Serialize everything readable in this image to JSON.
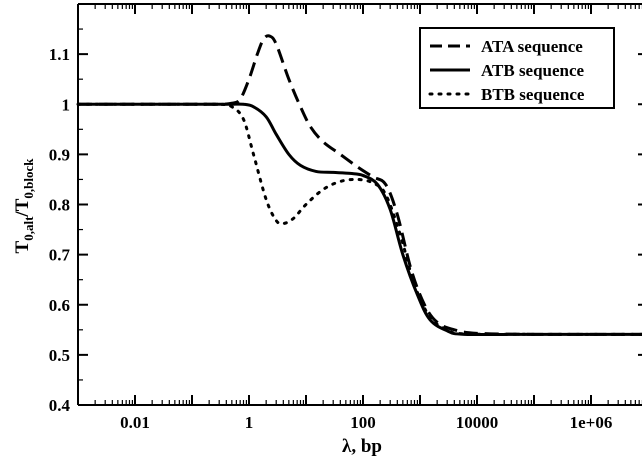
{
  "chart_data": {
    "type": "line",
    "xscale": "log",
    "xlim": [
      0.001,
      10000000
    ],
    "ylim": [
      0.4,
      1.2
    ],
    "x_ticks": [
      {
        "value": 0.01,
        "label": "0.01"
      },
      {
        "value": 1,
        "label": "1"
      },
      {
        "value": 100,
        "label": "100"
      },
      {
        "value": 10000,
        "label": "10000"
      },
      {
        "value": 1000000,
        "label": "1e+06"
      }
    ],
    "y_ticks": [
      {
        "value": 0.4,
        "label": "0.4"
      },
      {
        "value": 0.5,
        "label": "0.5"
      },
      {
        "value": 0.6,
        "label": "0.6"
      },
      {
        "value": 0.7,
        "label": "0.7"
      },
      {
        "value": 0.8,
        "label": "0.8"
      },
      {
        "value": 0.9,
        "label": "0.9"
      },
      {
        "value": 1.0,
        "label": "1"
      },
      {
        "value": 1.1,
        "label": "1.1"
      }
    ],
    "xlabel": "λ, bp",
    "ylabel": {
      "main": "T",
      "sub1": "0,alt",
      "mid": "/T",
      "sub2": "0,block"
    },
    "legend_position": "top-right",
    "series": [
      {
        "name": "ATA sequence",
        "style": "dashed",
        "color": "#000000",
        "points": [
          [
            0.001,
            1.0
          ],
          [
            0.1,
            1.0
          ],
          [
            0.3,
            1.0
          ],
          [
            0.5,
            1.002
          ],
          [
            0.7,
            1.01
          ],
          [
            1.0,
            1.05
          ],
          [
            1.4,
            1.1
          ],
          [
            1.8,
            1.13
          ],
          [
            2.3,
            1.136
          ],
          [
            3.0,
            1.12
          ],
          [
            5.0,
            1.05
          ],
          [
            8.0,
            0.995
          ],
          [
            12.0,
            0.955
          ],
          [
            20.0,
            0.925
          ],
          [
            40.0,
            0.9
          ],
          [
            80.0,
            0.875
          ],
          [
            150.0,
            0.855
          ],
          [
            250.0,
            0.84
          ],
          [
            400.0,
            0.78
          ],
          [
            700.0,
            0.67
          ],
          [
            1200.0,
            0.6
          ],
          [
            2000.0,
            0.565
          ],
          [
            4000.0,
            0.55
          ],
          [
            10000.0,
            0.543
          ],
          [
            100000.0,
            0.541
          ],
          [
            10000000.0,
            0.541
          ]
        ]
      },
      {
        "name": "ATB sequence",
        "style": "solid",
        "color": "#000000",
        "points": [
          [
            0.001,
            1.0
          ],
          [
            0.1,
            1.0
          ],
          [
            0.3,
            1.0
          ],
          [
            0.5,
            1.0
          ],
          [
            0.8,
            1.0
          ],
          [
            1.2,
            0.995
          ],
          [
            2.0,
            0.975
          ],
          [
            3.0,
            0.94
          ],
          [
            5.0,
            0.9
          ],
          [
            8.0,
            0.878
          ],
          [
            15.0,
            0.866
          ],
          [
            30.0,
            0.864
          ],
          [
            60.0,
            0.862
          ],
          [
            100.0,
            0.858
          ],
          [
            180.0,
            0.84
          ],
          [
            300.0,
            0.79
          ],
          [
            500.0,
            0.7
          ],
          [
            900.0,
            0.62
          ],
          [
            1500.0,
            0.57
          ],
          [
            3000.0,
            0.548
          ],
          [
            6000.0,
            0.541
          ],
          [
            100000.0,
            0.541
          ],
          [
            10000000.0,
            0.541
          ]
        ]
      },
      {
        "name": "BTB sequence",
        "style": "dotted",
        "color": "#000000",
        "points": [
          [
            0.001,
            1.0
          ],
          [
            0.1,
            1.0
          ],
          [
            0.3,
            1.0
          ],
          [
            0.5,
            0.995
          ],
          [
            0.8,
            0.97
          ],
          [
            1.2,
            0.9
          ],
          [
            2.0,
            0.81
          ],
          [
            3.0,
            0.768
          ],
          [
            4.0,
            0.762
          ],
          [
            6.0,
            0.772
          ],
          [
            10.0,
            0.8
          ],
          [
            20.0,
            0.83
          ],
          [
            40.0,
            0.846
          ],
          [
            80.0,
            0.85
          ],
          [
            150.0,
            0.843
          ],
          [
            250.0,
            0.82
          ],
          [
            450.0,
            0.74
          ],
          [
            800.0,
            0.64
          ],
          [
            1500.0,
            0.575
          ],
          [
            3000.0,
            0.55
          ],
          [
            6000.0,
            0.542
          ],
          [
            100000.0,
            0.541
          ],
          [
            10000000.0,
            0.541
          ]
        ]
      }
    ]
  }
}
